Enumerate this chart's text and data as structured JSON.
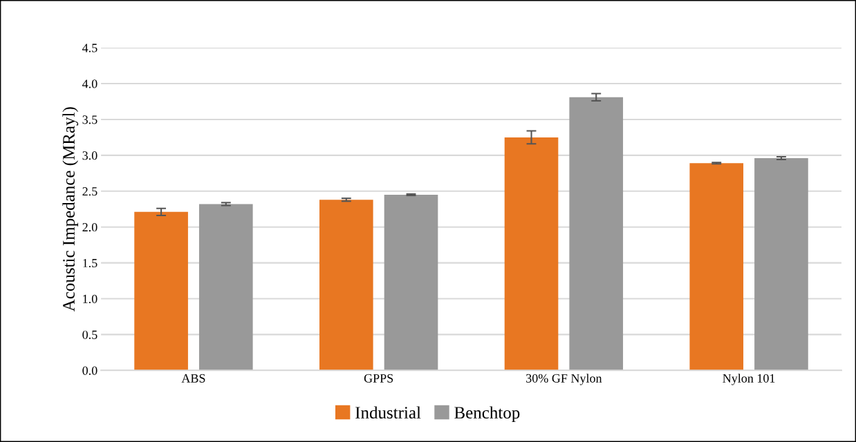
{
  "chart_data": {
    "type": "bar",
    "ylabel": "Acoustic Impedance (MRayl)",
    "categories": [
      "ABS",
      "GPPS",
      "30% GF Nylon",
      "Nylon 101"
    ],
    "series": [
      {
        "name": "Industrial",
        "color": "#e87722",
        "values": [
          2.21,
          2.38,
          3.25,
          2.89
        ],
        "errors": [
          0.05,
          0.02,
          0.09,
          0.01
        ]
      },
      {
        "name": "Benchtop",
        "color": "#999999",
        "values": [
          2.32,
          2.45,
          3.81,
          2.96
        ],
        "errors": [
          0.02,
          0.01,
          0.05,
          0.02
        ]
      }
    ],
    "ylim": [
      0,
      4.5
    ],
    "yticks": [
      {
        "value": 0,
        "label": "0.0"
      },
      0.5,
      {
        "value": 1,
        "label": "1.0"
      },
      1.5,
      {
        "value": 2,
        "label": "2.0"
      },
      2.5,
      {
        "value": 3,
        "label": "3.0"
      },
      3.5,
      {
        "value": 4,
        "label": "4.0"
      },
      4.5
    ],
    "grid": "y",
    "legend": "bottom"
  }
}
